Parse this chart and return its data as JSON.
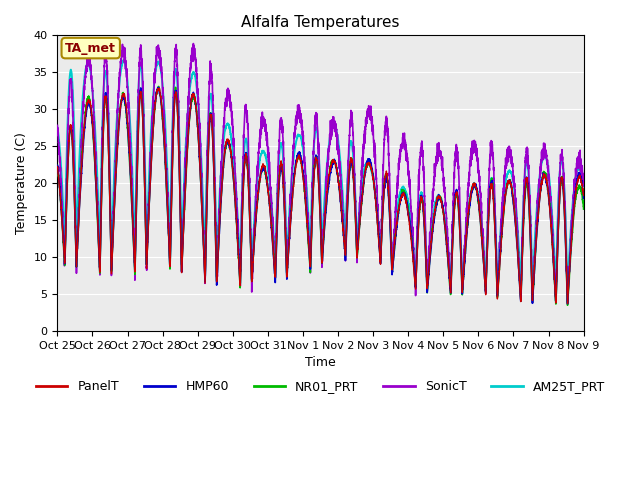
{
  "title": "Alfalfa Temperatures",
  "xlabel": "Time",
  "ylabel": "Temperature (C)",
  "ylim": [
    0,
    40
  ],
  "annotation_text": "TA_met",
  "annotation_color": "#8B0000",
  "annotation_bg": "#FFFFC0",
  "annotation_edge": "#AA8800",
  "bg_color": "#EBEBEB",
  "x_tick_labels": [
    "Oct 25",
    "Oct 26",
    "Oct 27",
    "Oct 28",
    "Oct 29",
    "Oct 30",
    "Oct 31",
    "Nov 1",
    "Nov 2",
    "Nov 3",
    "Nov 4",
    "Nov 5",
    "Nov 6",
    "Nov 7",
    "Nov 8",
    "Nov 9"
  ],
  "series_colors": {
    "PanelT": "#CC0000",
    "HMP60": "#0000CC",
    "NR01_PRT": "#00BB00",
    "SonicT": "#9900CC",
    "AM25T_PRT": "#00CCCC"
  },
  "series_linewidths": {
    "PanelT": 1.0,
    "HMP60": 1.2,
    "NR01_PRT": 1.2,
    "SonicT": 1.2,
    "AM25T_PRT": 1.4
  },
  "grid_color": "#FFFFFF",
  "title_fontsize": 11,
  "label_fontsize": 9,
  "tick_fontsize": 8,
  "legend_fontsize": 9
}
